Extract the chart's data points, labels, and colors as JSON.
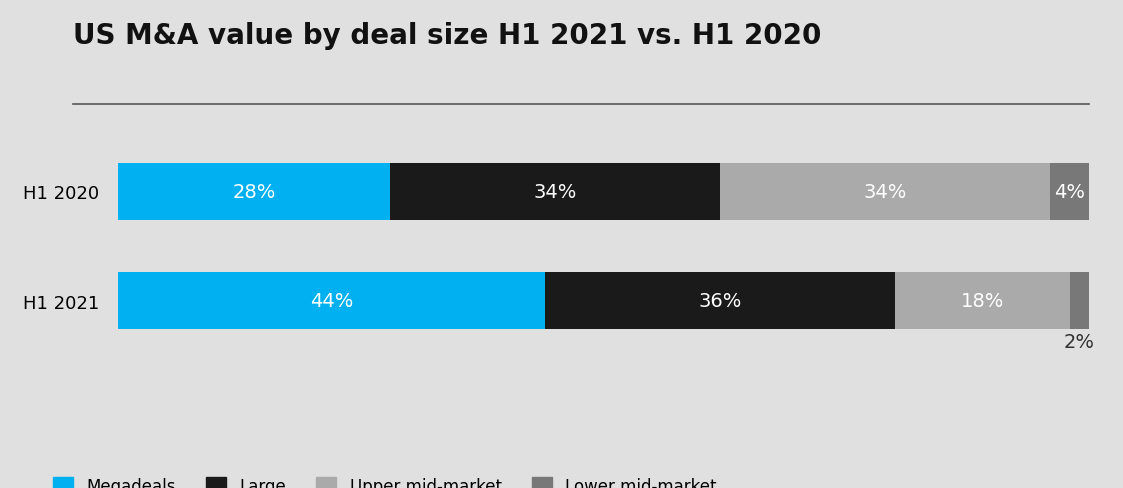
{
  "title": "US M&A value by deal size H1 2021 vs. H1 2020",
  "title_fontsize": 20,
  "background_color": "#e0e0e0",
  "rows": [
    "H1 2020",
    "H1 2021"
  ],
  "categories": [
    "Megadeals",
    "Large",
    "Upper mid-market",
    "Lower mid-market"
  ],
  "values": [
    [
      28,
      34,
      34,
      4
    ],
    [
      44,
      36,
      18,
      2
    ]
  ],
  "colors": [
    "#00b0f0",
    "#1a1a1a",
    "#aaaaaa",
    "#787878"
  ],
  "bar_height": 0.52,
  "legend_labels": [
    "Megadeals",
    "Large",
    "Upper mid-market",
    "Lower mid-market"
  ],
  "text_fontsize": 14,
  "ytick_fontsize": 13,
  "legend_fontsize": 12
}
